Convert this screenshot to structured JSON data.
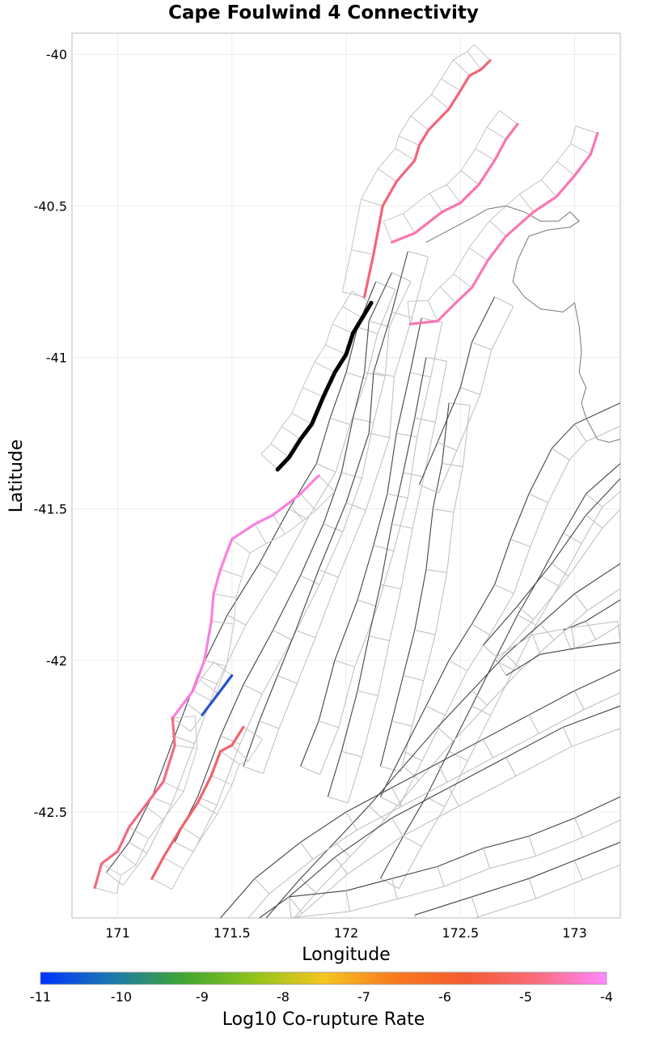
{
  "chart_data": {
    "type": "map",
    "title": "Cape Foulwind 4 Connectivity",
    "xlabel": "Longitude",
    "ylabel": "Latitude",
    "xlim": [
      170.8,
      173.2
    ],
    "ylim": [
      -42.85,
      -39.93
    ],
    "xticks": [
      171,
      171.5,
      172,
      172.5,
      173
    ],
    "xtick_labels": [
      "171",
      "171.5",
      "172",
      "172.5",
      "173"
    ],
    "yticks": [
      -40,
      -40.5,
      -41,
      -41.5,
      -42,
      -42.5
    ],
    "ytick_labels": [
      "-40",
      "-40.5",
      "-41",
      "-41.5",
      "-42",
      "-42.5"
    ],
    "grid": true,
    "colorbar": {
      "label": "Log10 Co-rupture Rate",
      "min": -11,
      "max": -4,
      "ticks": [
        -11,
        -10,
        -9,
        -8,
        -7,
        -6,
        -5,
        -4
      ],
      "tick_labels": [
        "-11",
        "-10",
        "-9",
        "-8",
        "-7",
        "-6",
        "-5",
        "-4"
      ],
      "stops": [
        "#0033ff",
        "#1a78b0",
        "#3ea532",
        "#8fc41a",
        "#f4c620",
        "#f97a1e",
        "#f55a30",
        "#fa6c7a",
        "#ff88ff"
      ]
    },
    "source_section": {
      "name": "Cape Foulwind 4",
      "color": "#000000",
      "trace": [
        [
          171.7,
          -41.37
        ],
        [
          171.75,
          -41.33
        ],
        [
          171.8,
          -41.27
        ],
        [
          171.85,
          -41.22
        ],
        [
          171.9,
          -41.13
        ],
        [
          171.95,
          -41.05
        ],
        [
          172.0,
          -40.99
        ],
        [
          172.03,
          -40.92
        ],
        [
          172.07,
          -40.87
        ],
        [
          172.11,
          -40.82
        ]
      ]
    },
    "colored_sections": [
      {
        "log10_rate": -4.6,
        "color": "#f3657a",
        "trace": [
          [
            172.08,
            -40.8
          ],
          [
            172.12,
            -40.66
          ],
          [
            172.16,
            -40.5
          ],
          [
            172.22,
            -40.42
          ],
          [
            172.3,
            -40.35
          ],
          [
            172.32,
            -40.3
          ],
          [
            172.36,
            -40.25
          ],
          [
            172.45,
            -40.18
          ],
          [
            172.5,
            -40.12
          ],
          [
            172.54,
            -40.07
          ],
          [
            172.59,
            -40.05
          ],
          [
            172.63,
            -40.02
          ]
        ]
      },
      {
        "log10_rate": -4.3,
        "color": "#f975ad",
        "trace": [
          [
            172.2,
            -40.62
          ],
          [
            172.3,
            -40.59
          ],
          [
            172.42,
            -40.52
          ],
          [
            172.5,
            -40.49
          ],
          [
            172.58,
            -40.43
          ],
          [
            172.65,
            -40.35
          ],
          [
            172.7,
            -40.28
          ],
          [
            172.75,
            -40.23
          ]
        ]
      },
      {
        "log10_rate": -4.3,
        "color": "#f977b4",
        "trace": [
          [
            172.28,
            -40.89
          ],
          [
            172.4,
            -40.88
          ],
          [
            172.48,
            -40.82
          ],
          [
            172.55,
            -40.77
          ],
          [
            172.62,
            -40.68
          ],
          [
            172.7,
            -40.6
          ],
          [
            172.82,
            -40.52
          ],
          [
            172.92,
            -40.47
          ],
          [
            173.0,
            -40.4
          ],
          [
            173.07,
            -40.33
          ],
          [
            173.1,
            -40.26
          ]
        ]
      },
      {
        "log10_rate": -4.1,
        "color": "#fb7fe0",
        "trace": [
          [
            171.88,
            -41.39
          ],
          [
            171.8,
            -41.45
          ],
          [
            171.75,
            -41.48
          ],
          [
            171.68,
            -41.52
          ],
          [
            171.6,
            -41.55
          ],
          [
            171.5,
            -41.6
          ],
          [
            171.45,
            -41.7
          ],
          [
            171.42,
            -41.78
          ],
          [
            171.41,
            -41.87
          ],
          [
            171.38,
            -42.0
          ],
          [
            171.33,
            -42.1
          ],
          [
            171.24,
            -42.19
          ]
        ]
      },
      {
        "log10_rate": -4.8,
        "color": "#f16c80",
        "trace": [
          [
            171.24,
            -42.19
          ],
          [
            171.25,
            -42.28
          ],
          [
            171.2,
            -42.4
          ],
          [
            171.12,
            -42.48
          ],
          [
            171.05,
            -42.55
          ],
          [
            171.0,
            -42.63
          ],
          [
            170.93,
            -42.67
          ],
          [
            170.9,
            -42.75
          ]
        ]
      },
      {
        "log10_rate": -10.2,
        "color": "#2554cc",
        "trace": [
          [
            171.37,
            -42.18
          ],
          [
            171.44,
            -42.11
          ],
          [
            171.5,
            -42.05
          ]
        ]
      },
      {
        "log10_rate": -4.9,
        "color": "#f0626e",
        "trace": [
          [
            171.55,
            -42.22
          ],
          [
            171.5,
            -42.28
          ],
          [
            171.45,
            -42.3
          ],
          [
            171.41,
            -42.38
          ],
          [
            171.35,
            -42.47
          ],
          [
            171.28,
            -42.55
          ],
          [
            171.2,
            -42.65
          ],
          [
            171.15,
            -42.72
          ]
        ]
      }
    ],
    "annotations": []
  }
}
